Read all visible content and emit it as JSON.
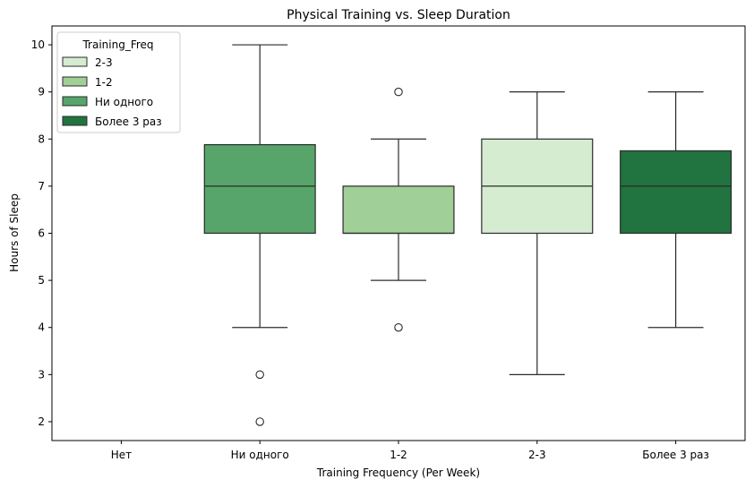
{
  "chart_data": {
    "type": "boxplot",
    "title": "Physical Training vs. Sleep Duration",
    "xlabel": "Training Frequency (Per Week)",
    "ylabel": "Hours of Sleep",
    "ylim": [
      1.6,
      10.4
    ],
    "yticks": [
      2,
      3,
      4,
      5,
      6,
      7,
      8,
      9,
      10
    ],
    "categories": [
      "Нет",
      "Ни одного",
      "1-2",
      "2-3",
      "Более 3 раз"
    ],
    "grid": false,
    "legend": {
      "title": "Training_Freq",
      "position": "top-left",
      "entries": [
        {
          "label": "2-3",
          "color": "#d5ecd0"
        },
        {
          "label": "1-2",
          "color": "#a0cf98"
        },
        {
          "label": "Ни одного",
          "color": "#57a56a"
        },
        {
          "label": "Более 3 раз",
          "color": "#21733f"
        }
      ]
    },
    "boxes": [
      {
        "category": "Ни одного",
        "q1": 6,
        "median": 7,
        "q3": 7.88,
        "whisker_low": 4,
        "whisker_high": 10,
        "outliers": [
          3,
          2
        ],
        "color": "#57a56a"
      },
      {
        "category": "1-2",
        "q1": 6,
        "median": 6,
        "q3": 7,
        "whisker_low": 5,
        "whisker_high": 8,
        "outliers": [
          9,
          4
        ],
        "color": "#a0cf98"
      },
      {
        "category": "2-3",
        "q1": 6,
        "median": 7,
        "q3": 8,
        "whisker_low": 3,
        "whisker_high": 9,
        "outliers": [],
        "color": "#d5ecd0"
      },
      {
        "category": "Более 3 раз",
        "q1": 6,
        "median": 7,
        "q3": 7.75,
        "whisker_low": 4,
        "whisker_high": 9,
        "outliers": [],
        "color": "#21733f"
      }
    ]
  }
}
